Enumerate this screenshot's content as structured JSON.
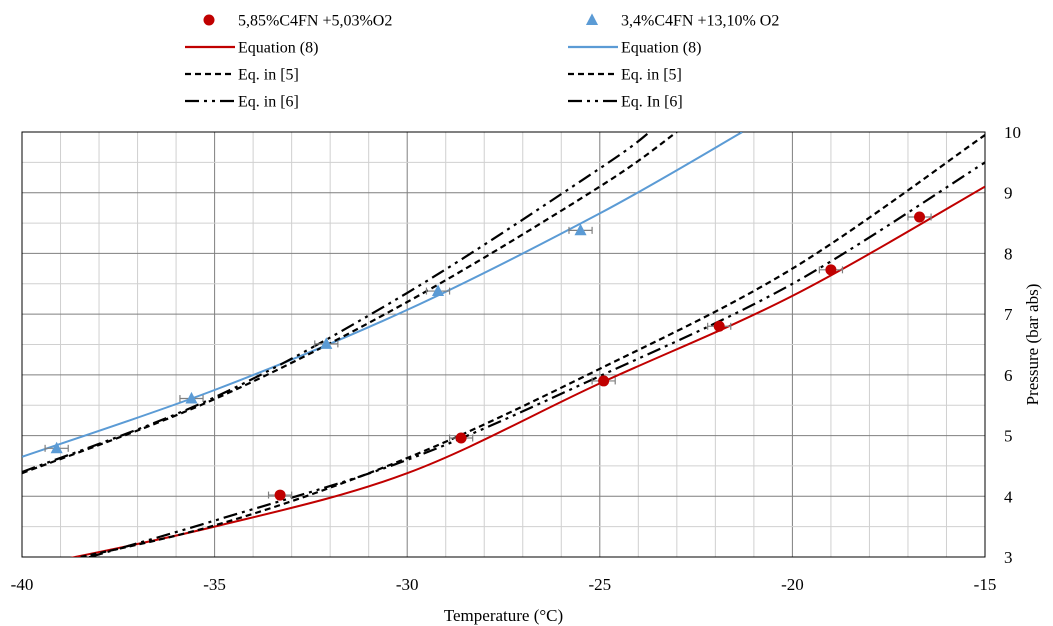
{
  "chart_data": {
    "type": "scatter",
    "xlabel": "Temperature (°C)",
    "ylabel": "Pressure (bar abs)",
    "xlim": [
      -40,
      -15
    ],
    "ylim": [
      3,
      10
    ],
    "x_ticks": [
      "-40",
      "-35",
      "-30",
      "-25",
      "-20",
      "-15"
    ],
    "y_ticks": [
      "3",
      "4",
      "5",
      "6",
      "7",
      "8",
      "9",
      "10"
    ],
    "grid": true,
    "y_axis_side": "right",
    "legend_position": "top",
    "series": [
      {
        "name": "5,85%C4FN +5,03%O2",
        "kind": "markers",
        "marker": "circle",
        "color": "#c00000",
        "x": [
          -33.3,
          -28.6,
          -24.9,
          -21.9,
          -19.0,
          -16.7
        ],
        "y": [
          4.02,
          4.96,
          5.9,
          6.8,
          7.73,
          8.6
        ],
        "x_err": 0.3
      },
      {
        "name": "Equation (8)",
        "kind": "line",
        "dash": "solid",
        "color": "#c00000",
        "x": [
          -40,
          -35,
          -30,
          -25,
          -20,
          -15
        ],
        "y": [
          2.82,
          3.5,
          4.38,
          5.86,
          7.3,
          9.1
        ]
      },
      {
        "name": "Eq. in [5]",
        "kind": "line",
        "dash": "dash",
        "color": "#000000",
        "x": [
          -40,
          -35,
          -30,
          -25,
          -20,
          -15
        ],
        "y": [
          2.8,
          3.52,
          4.63,
          6.1,
          7.75,
          9.95
        ]
      },
      {
        "name": "Eq. in [6]",
        "kind": "line",
        "dash": "dashdotdot",
        "color": "#000000",
        "x": [
          -40,
          -35,
          -30,
          -25,
          -20,
          -15
        ],
        "y": [
          2.68,
          3.6,
          4.6,
          5.98,
          7.5,
          9.5
        ]
      },
      {
        "name": "3,4%C4FN +13,10% O2",
        "kind": "markers",
        "marker": "triangle",
        "color": "#5b9bd5",
        "x": [
          -39.1,
          -35.6,
          -32.1,
          -29.2,
          -25.5
        ],
        "y": [
          4.79,
          5.61,
          6.51,
          7.38,
          8.38
        ],
        "x_err": 0.3
      },
      {
        "name": "Equation (8)",
        "kind": "line",
        "dash": "solid",
        "color": "#5b9bd5",
        "x": [
          -40,
          -35,
          -30,
          -25,
          -21.3
        ],
        "y": [
          4.65,
          5.75,
          7.07,
          8.66,
          10.0
        ]
      },
      {
        "name": "Eq. in [5]",
        "kind": "line",
        "dash": "dash",
        "color": "#000000",
        "x": [
          -40,
          -35,
          -30,
          -25,
          -23.0
        ],
        "y": [
          4.38,
          5.6,
          7.2,
          9.1,
          10.0
        ]
      },
      {
        "name": "Eq. In [6]",
        "kind": "line",
        "dash": "dashdotdot",
        "color": "#000000",
        "x": [
          -40,
          -35,
          -30,
          -25,
          -23.7
        ],
        "y": [
          4.4,
          5.63,
          7.35,
          9.4,
          10.0
        ]
      }
    ]
  }
}
